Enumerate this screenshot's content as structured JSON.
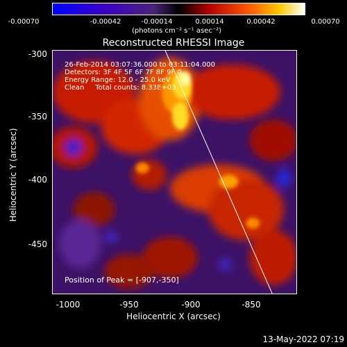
{
  "colorbar": {
    "ticks": [
      "-0.00070",
      "-0.00042",
      "-0.00014",
      "0.00014",
      "0.00042",
      "0.00070"
    ],
    "units": "(photons cm⁻² s⁻¹ asec⁻²)"
  },
  "title": "Reconstructed RHESSI Image",
  "annotations": {
    "time": "26-Feb-2014 03:07:36.000 to 03:11:04.000",
    "detectors": "Detectors: 3F 4F 5F 6F 7F 8F 9F 0",
    "energy": "Energy Range: 12.0 - 25.0 keV",
    "clean": "Clean     Total counts: 8.33E+03",
    "peak": "Position of Peak = [-907,-350]"
  },
  "axes": {
    "xlabel": "Heliocentric X (arcsec)",
    "ylabel": "Heliocentric Y (arcsec)",
    "xticks": [
      "-1000",
      "-950",
      "-900",
      "-850"
    ],
    "yticks": [
      "-300",
      "-350",
      "-400",
      "-450"
    ]
  },
  "timestamp": "13-May-2022 07:19"
}
